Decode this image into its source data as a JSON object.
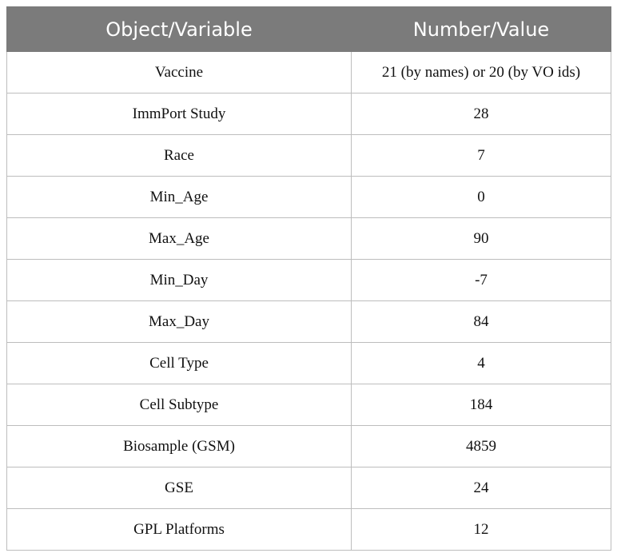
{
  "table": {
    "headers": [
      "Object/Variable",
      "Number/Value"
    ],
    "rows": [
      {
        "object": "Vaccine",
        "value": "21 (by names) or 20 (by VO ids)"
      },
      {
        "object": "ImmPort Study",
        "value": "28"
      },
      {
        "object": "Race",
        "value": "7"
      },
      {
        "object": "Min_Age",
        "value": "0"
      },
      {
        "object": "Max_Age",
        "value": "90"
      },
      {
        "object": "Min_Day",
        "value": "-7"
      },
      {
        "object": "Max_Day",
        "value": "84"
      },
      {
        "object": "Cell Type",
        "value": "4"
      },
      {
        "object": "Cell Subtype",
        "value": "184"
      },
      {
        "object": "Biosample (GSM)",
        "value": "4859"
      },
      {
        "object": "GSE",
        "value": "24"
      },
      {
        "object": "GPL Platforms",
        "value": "12"
      }
    ]
  },
  "colors": {
    "header_background": "#7b7b7b",
    "header_text": "#ffffff",
    "grid_lines": "#bdbdbd"
  }
}
